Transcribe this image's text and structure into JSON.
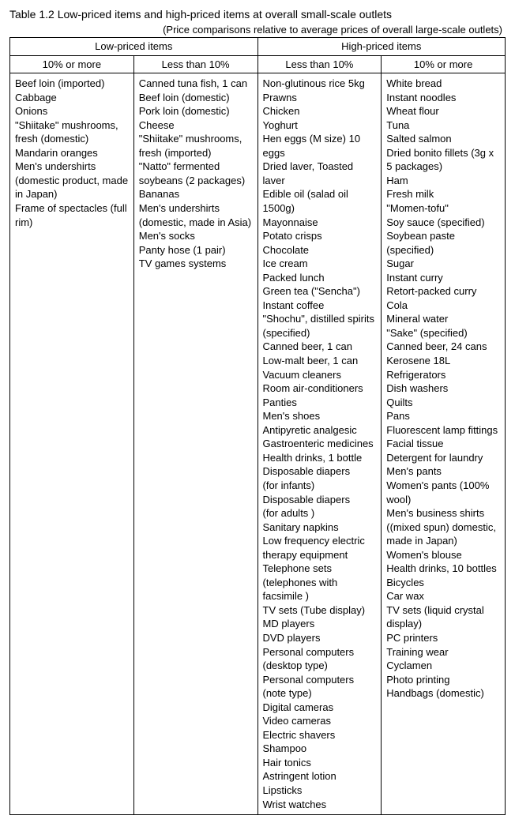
{
  "title": "Table 1.2 Low-priced items and high-priced items at overall small-scale outlets",
  "subtitle": "(Price comparisons relative to average prices of overall large-scale outlets)",
  "headers": {
    "low": "Low-priced items",
    "high": "High-priced items",
    "col1": "10% or more",
    "col2": "Less than 10%",
    "col3": "Less than 10%",
    "col4": "10% or more"
  },
  "columns": {
    "c1": "Beef loin (imported)\nCabbage\nOnions\n\"Shiitake\" mushrooms, fresh (domestic)\nMandarin oranges\nMen's undershirts (domestic product, made in Japan)\nFrame of spectacles (full rim)",
    "c2": "Canned tuna fish, 1 can\nBeef loin (domestic)\nPork loin (domestic)\nCheese\n\"Shiitake\" mushrooms, fresh (imported)\n\"Natto\" fermented soybeans (2 packages)\nBananas\nMen's undershirts (domestic, made in Asia)\nMen's socks\nPanty hose (1 pair)\nTV games systems",
    "c3": "Non-glutinous rice 5kg\nPrawns\nChicken\nYoghurt\nHen eggs (M size) 10 eggs\nDried laver, Toasted laver\nEdible oil (salad oil 1500g)\nMayonnaise\nPotato crisps\nChocolate\nIce cream\nPacked lunch\nGreen tea (\"Sencha\")\nInstant coffee\n\"Shochu\", distilled spirits (specified)\nCanned beer, 1 can\nLow-malt beer, 1 can\nVacuum cleaners\nRoom air-conditioners\nPanties\nMen's shoes\nAntipyretic analgesic\nGastroenteric medicines\nHealth drinks, 1 bottle\nDisposable diapers\n(for infants)\nDisposable diapers\n(for adults )\nSanitary napkins\nLow frequency electric therapy equipment\nTelephone sets (telephones with facsimile )\nTV sets (Tube display)\nMD players\nDVD players\nPersonal computers (desktop type)\nPersonal computers (note type)\nDigital cameras\nVideo cameras\nElectric shavers\nShampoo\nHair tonics\nAstringent lotion\nLipsticks\nWrist watches",
    "c4": "White bread\nInstant noodles\nWheat flour\nTuna\nSalted salmon\nDried bonito fillets (3g x 5 packages)\nHam\nFresh milk\n\"Momen-tofu\"\nSoy sauce (specified)\nSoybean paste (specified)\nSugar\nInstant curry\nRetort-packed curry\nCola\nMineral water\n\"Sake\" (specified)\nCanned beer, 24 cans\nKerosene 18L\nRefrigerators\nDish washers\nQuilts\nPans\nFluorescent lamp fittings\nFacial tissue\nDetergent for laundry\nMen's pants\nWomen's pants (100% wool)\nMen's business shirts ((mixed spun) domestic, made in Japan)\nWomen's blouse\nHealth drinks, 10 bottles\nBicycles\nCar wax\nTV sets (liquid crystal display)\nPC printers\nTraining wear\nCyclamen\nPhoto printing\nHandbags (domestic)"
  }
}
